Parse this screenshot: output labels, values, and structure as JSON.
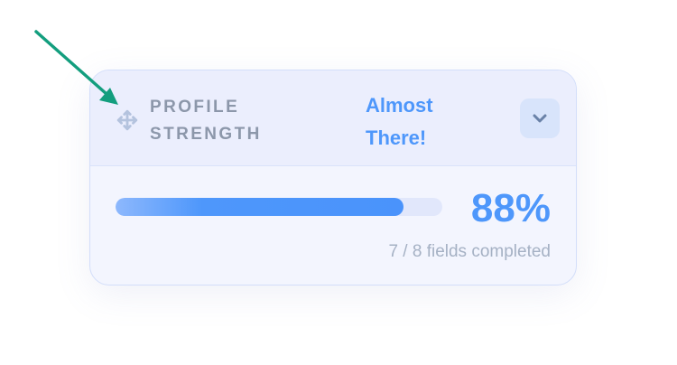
{
  "widget": {
    "title_line1": "PROFILE",
    "title_line2": "STRENGTH",
    "status_line1": "Almost",
    "status_line2": "There!",
    "percent_label": "88%",
    "progress_percent": 88,
    "fields_completed_text": "7 / 8 fields completed",
    "icons": {
      "drag": "move-icon",
      "toggle": "chevron-down-icon"
    }
  },
  "colors": {
    "accent": "#4e97fb",
    "annotation_arrow": "#139e7e",
    "title": "#8c97aa"
  }
}
